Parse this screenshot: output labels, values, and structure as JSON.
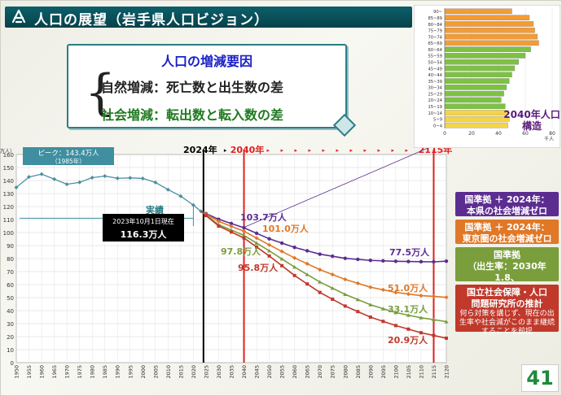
{
  "header": {
    "title": "人口の展望（岩手県人口ビジョン）"
  },
  "callout": {
    "heading": "人口の増減要因",
    "natural": "自然増減：死亡数と出生数の差",
    "social": "社会増減：転出数と転入数の差"
  },
  "page_number": "41",
  "legend": [
    {
      "line1": "国準拠 ＋ 2024年：",
      "line2": "本県の社会増減ゼロ",
      "sub": "",
      "color": "#5c2d91"
    },
    {
      "line1": "国準拠 ＋ 2024年：",
      "line2": "東京圏の社会増減ゼロ",
      "sub": "",
      "color": "#e07828"
    },
    {
      "line1": "国準拠",
      "line2": "（出生率：2030年1.8、",
      "sub": "2040年2.07）",
      "color": "#7a9e3c"
    },
    {
      "line1": "国立社会保障・人口",
      "line2": "問題研究所の推計",
      "sub": "何ら対策を講じず、現在の出生率や社会減がこのまま継続することを前提",
      "color": "#c0392b"
    }
  ],
  "chart_data": [
    {
      "type": "line",
      "ylabel": "（万人）",
      "ylim": [
        0,
        160
      ],
      "yticks": [
        0,
        10,
        20,
        30,
        40,
        50,
        60,
        70,
        80,
        90,
        100,
        110,
        120,
        130,
        140,
        150,
        160
      ],
      "xlim": [
        1950,
        2120
      ],
      "xticks": [
        1950,
        1955,
        1960,
        1965,
        1970,
        1975,
        1980,
        1985,
        1990,
        1995,
        2000,
        2005,
        2010,
        2015,
        2020,
        2025,
        2030,
        2035,
        2040,
        2045,
        2050,
        2055,
        2060,
        2065,
        2070,
        2075,
        2080,
        2085,
        2090,
        2095,
        2100,
        2105,
        2110,
        2115,
        2120
      ],
      "historical": {
        "x": [
          1950,
          1955,
          1960,
          1965,
          1970,
          1975,
          1980,
          1985,
          1990,
          1995,
          2000,
          2005,
          2010,
          2015,
          2020,
          2023
        ],
        "y": [
          134.7,
          142.7,
          144.9,
          141.1,
          137.1,
          138.6,
          142.2,
          143.4,
          141.7,
          142.0,
          141.6,
          138.5,
          133.0,
          128.0,
          121.1,
          116.3
        ]
      },
      "series": [
        {
          "name": "国準拠 ＋ 2024年：本県の社会増減ゼロ",
          "color": "#5c2d91",
          "x": [
            2023,
            2030,
            2040,
            2050,
            2060,
            2070,
            2080,
            2090,
            2100,
            2110,
            2115,
            2120
          ],
          "y": [
            116.3,
            110.2,
            103.7,
            95.2,
            88.6,
            83.4,
            80.2,
            78.6,
            77.9,
            77.6,
            77.5,
            78.0
          ]
        },
        {
          "name": "国準拠 ＋ 2024年：東京圏の社会増減ゼロ",
          "color": "#e07828",
          "x": [
            2023,
            2030,
            2040,
            2050,
            2060,
            2070,
            2080,
            2090,
            2100,
            2110,
            2115,
            2120
          ],
          "y": [
            116.3,
            108.6,
            101.0,
            90.5,
            80.5,
            71.5,
            64.0,
            58.0,
            54.0,
            51.5,
            51.0,
            50.2
          ]
        },
        {
          "name": "国準拠",
          "color": "#7a9e3c",
          "x": [
            2023,
            2030,
            2040,
            2050,
            2060,
            2070,
            2080,
            2090,
            2100,
            2110,
            2115,
            2120
          ],
          "y": [
            116.3,
            106.0,
            97.8,
            86.0,
            73.5,
            62.0,
            52.5,
            44.5,
            38.5,
            34.5,
            33.1,
            31.5
          ]
        },
        {
          "name": "国立社会保障・人口問題研究所の推計",
          "color": "#c0392b",
          "x": [
            2023,
            2030,
            2040,
            2050,
            2060,
            2070,
            2080,
            2090,
            2100,
            2110,
            2115,
            2120
          ],
          "y": [
            116.3,
            105.0,
            95.8,
            82.0,
            67.0,
            54.0,
            43.5,
            35.0,
            28.5,
            23.0,
            20.9,
            18.8
          ]
        }
      ],
      "annotations": {
        "peak": "ピーク：143.4万人（1985年）",
        "actual": "実績",
        "current_date": "2023年10月1日現在",
        "current_value": "116.3万人",
        "year_2024": "2024年",
        "year_2040": "2040年",
        "year_2115": "2115年",
        "label_1037": "103.7万人",
        "label_1010": "101.0万人",
        "label_978": "97.8万人",
        "label_958": "95.8万人",
        "label_775": "77.5万人",
        "label_510": "51.0万人",
        "label_331": "33.1万人",
        "label_209": "20.9万人"
      }
    },
    {
      "type": "bar",
      "title": "2040年人口構造",
      "xlabel": "千人",
      "xlim": [
        0,
        80
      ],
      "xticks": [
        0,
        20,
        40,
        60,
        80
      ],
      "categories": [
        "0~4",
        "5~9",
        "10~14",
        "15~19",
        "20~24",
        "25~29",
        "30~34",
        "35~39",
        "40~44",
        "45~49",
        "50~54",
        "55~59",
        "60~64",
        "65~69",
        "70~74",
        "75~79",
        "80~84",
        "85~89",
        "90~"
      ],
      "values": [
        47,
        48,
        47,
        45,
        42,
        44,
        46,
        48,
        50,
        52,
        55,
        60,
        64,
        70,
        69,
        67,
        66,
        63,
        50
      ],
      "colors": [
        "#f5d547",
        "#f5d547",
        "#f5d547",
        "#7dc242",
        "#7dc242",
        "#7dc242",
        "#7dc242",
        "#7dc242",
        "#7dc242",
        "#7dc242",
        "#7dc242",
        "#7dc242",
        "#7dc242",
        "#f39c33",
        "#f39c33",
        "#f39c33",
        "#f39c33",
        "#f39c33",
        "#f39c33"
      ]
    }
  ]
}
